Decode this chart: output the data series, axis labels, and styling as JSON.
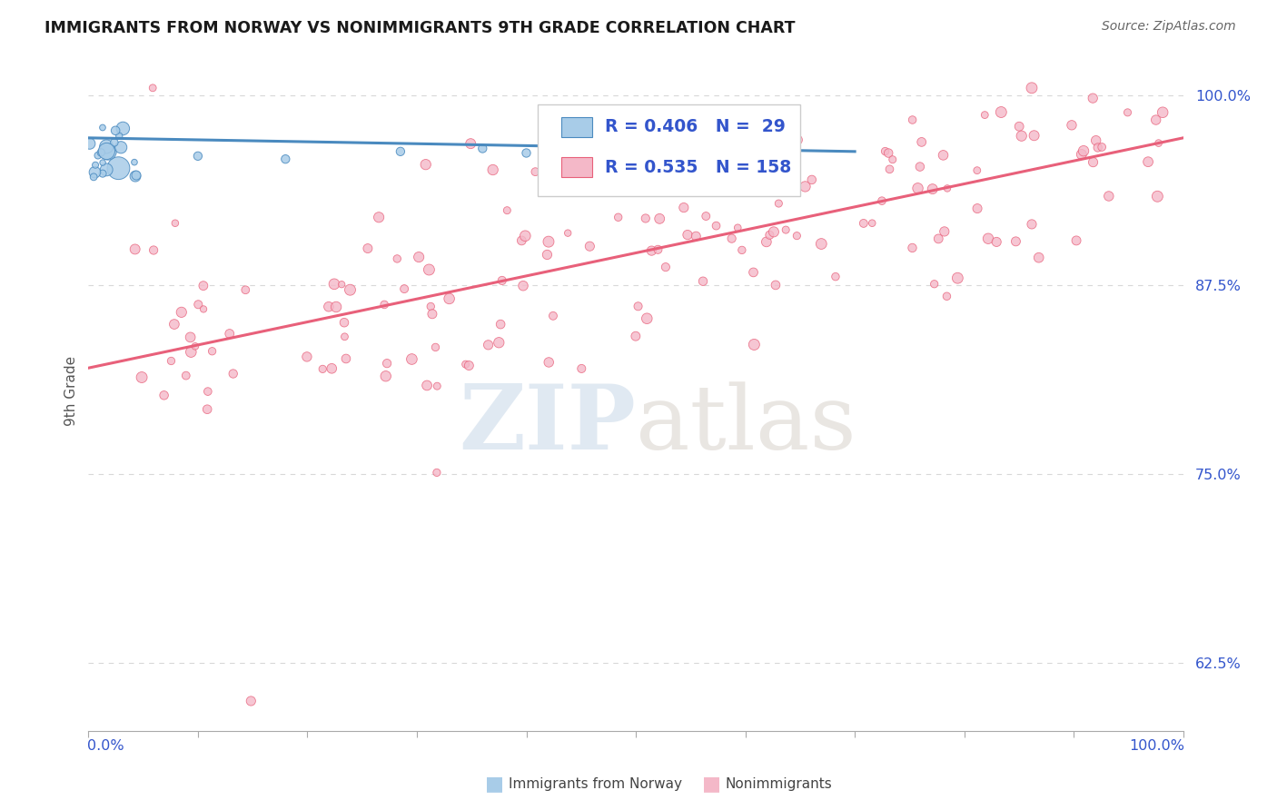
{
  "title": "IMMIGRANTS FROM NORWAY VS NONIMMIGRANTS 9TH GRADE CORRELATION CHART",
  "source": "Source: ZipAtlas.com",
  "ylabel": "9th Grade",
  "xlim": [
    0.0,
    1.0
  ],
  "ylim": [
    0.58,
    1.03
  ],
  "yticks": [
    0.625,
    0.75,
    0.875,
    1.0
  ],
  "ytick_labels": [
    "62.5%",
    "75.0%",
    "87.5%",
    "100.0%"
  ],
  "blue_color": "#a8cce8",
  "pink_color": "#f4b8c8",
  "blue_line_color": "#4a8abf",
  "pink_line_color": "#e8607a",
  "R_blue": 0.406,
  "N_blue": 29,
  "R_pink": 0.535,
  "N_pink": 158,
  "legend_color": "#3355cc",
  "title_color": "#1a1a1a",
  "source_color": "#666666",
  "grid_color": "#d8d8d8",
  "background_color": "#ffffff",
  "blue_trend_x": [
    0.0,
    0.7
  ],
  "blue_trend_y": [
    0.972,
    0.963
  ],
  "pink_trend_x": [
    0.0,
    1.0
  ],
  "pink_trend_y": [
    0.82,
    0.972
  ]
}
